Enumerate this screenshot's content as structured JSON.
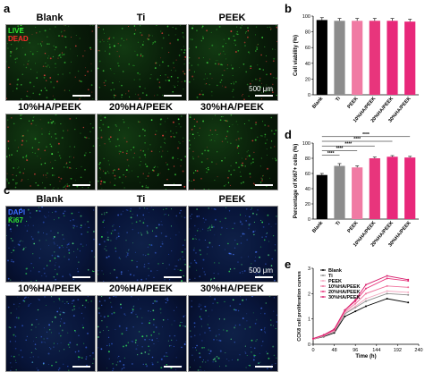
{
  "panels": {
    "a": {
      "label": "a",
      "titles": [
        "Blank",
        "Ti",
        "PEEK",
        "10%HA/PEEK",
        "20%HA/PEEK",
        "30%HA/PEEK"
      ],
      "stain1": "LIVE",
      "stain2": "DEAD",
      "scale": "500 μm",
      "colors": {
        "stain1": "#2ee82e",
        "stain2": "#ff2a2a"
      }
    },
    "c": {
      "label": "c",
      "titles": [
        "Blank",
        "Ti",
        "PEEK",
        "10%HA/PEEK",
        "20%HA/PEEK",
        "30%HA/PEEK"
      ],
      "stain1": "DAPI",
      "stain2": "Ki67",
      "scale": "500 μm",
      "colors": {
        "stain1": "#3b6cff",
        "stain2": "#2ee82e"
      }
    },
    "b": {
      "label": "b"
    },
    "d": {
      "label": "d"
    },
    "e": {
      "label": "e"
    }
  },
  "chart_data": [
    {
      "id": "b",
      "type": "bar",
      "categories": [
        "Blank",
        "Ti",
        "PEEK",
        "10%HA/PEEK",
        "20%HA/PEEK",
        "30%HA/PEEK"
      ],
      "values": [
        95,
        94,
        94,
        94,
        94,
        93
      ],
      "errors": [
        3,
        3,
        3,
        3,
        3,
        3
      ],
      "ylabel": "Cell viability (%)",
      "ylim": [
        0,
        100
      ],
      "yticks": [
        0,
        20,
        40,
        60,
        80,
        100
      ],
      "colors": [
        "#000000",
        "#8c8c8c",
        "#f07aa3",
        "#e8357c",
        "#e8287a",
        "#e8287a"
      ]
    },
    {
      "id": "d",
      "type": "bar",
      "categories": [
        "Blank",
        "Ti",
        "PEEK",
        "10%HA/PEEK",
        "20%HA/PEEK",
        "30%HA/PEEK"
      ],
      "values": [
        58,
        70,
        68,
        80,
        82,
        81
      ],
      "errors": [
        2,
        3,
        2,
        1.5,
        1.5,
        1.5
      ],
      "ylabel": "Percentage of Ki67+ cells (%)",
      "ylim": [
        0,
        100
      ],
      "yticks": [
        0,
        20,
        40,
        60,
        80,
        100
      ],
      "colors": [
        "#000000",
        "#8c8c8c",
        "#f07aa3",
        "#e8357c",
        "#e8287a",
        "#e8287a"
      ],
      "significance": [
        {
          "from": 0,
          "to": 1,
          "label": "****"
        },
        {
          "from": 0,
          "to": 2,
          "label": "****"
        },
        {
          "from": 0,
          "to": 3,
          "label": "****"
        },
        {
          "from": 0,
          "to": 4,
          "label": "****"
        },
        {
          "from": 0,
          "to": 5,
          "label": "****"
        }
      ]
    },
    {
      "id": "e",
      "type": "line",
      "x": [
        0,
        24,
        48,
        72,
        96,
        120,
        168,
        216
      ],
      "xlabel": "Time (h)",
      "ylabel": "CCK8 cell proliferation curves",
      "xlim": [
        0,
        240
      ],
      "xticks": [
        0,
        48,
        96,
        144,
        192,
        240
      ],
      "ylim": [
        0,
        3
      ],
      "yticks": [
        0,
        1,
        2,
        3
      ],
      "series": [
        {
          "name": "Blank",
          "color": "#000000",
          "values": [
            0.2,
            0.3,
            0.45,
            1.1,
            1.3,
            1.5,
            1.8,
            1.65
          ]
        },
        {
          "name": "Ti",
          "color": "#8c8c8c",
          "values": [
            0.2,
            0.32,
            0.5,
            1.2,
            1.45,
            1.7,
            2.0,
            1.95
          ]
        },
        {
          "name": "PEEK",
          "color": "#f4a7c0",
          "values": [
            0.2,
            0.33,
            0.52,
            1.25,
            1.5,
            1.8,
            2.1,
            2.05
          ]
        },
        {
          "name": "10%HA/PEEK",
          "color": "#ef6f9b",
          "values": [
            0.22,
            0.35,
            0.55,
            1.3,
            1.6,
            2.0,
            2.3,
            2.25
          ]
        },
        {
          "name": "20%HA/PEEK",
          "color": "#e8357c",
          "values": [
            0.22,
            0.36,
            0.58,
            1.35,
            1.7,
            2.2,
            2.6,
            2.5
          ]
        },
        {
          "name": "30%HA/PEEK",
          "color": "#d81f6e",
          "values": [
            0.23,
            0.37,
            0.6,
            1.35,
            1.75,
            2.35,
            2.7,
            2.55
          ]
        }
      ]
    }
  ]
}
